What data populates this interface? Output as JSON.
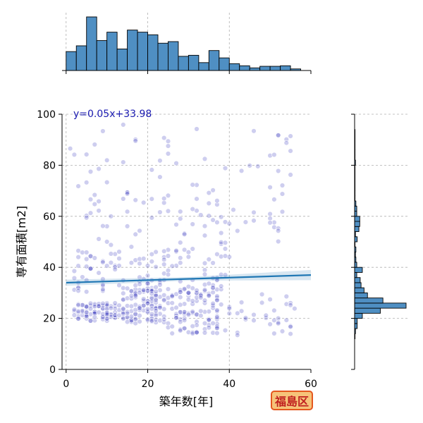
{
  "chart_data": {
    "type": "scatter",
    "xlabel": "築年数[年]",
    "ylabel": "専有面積[m2]",
    "xlim": [
      -1,
      60
    ],
    "ylim": [
      0,
      100
    ],
    "xticks": [
      0,
      20,
      40,
      60
    ],
    "yticks": [
      0,
      20,
      40,
      60,
      80,
      100
    ],
    "grid": true,
    "regression": {
      "label": "y=0.05x+33.98",
      "slope": 0.05,
      "intercept": 33.98,
      "x_range": [
        0,
        60
      ]
    },
    "point_clusters": [
      {
        "x": [
          2,
          14
        ],
        "y": [
          19,
          26
        ],
        "n": 90
      },
      {
        "x": [
          14,
          24
        ],
        "y": [
          18,
          32
        ],
        "n": 110
      },
      {
        "x": [
          24,
          38
        ],
        "y": [
          14,
          32
        ],
        "n": 110
      },
      {
        "x": [
          38,
          56
        ],
        "y": [
          13,
          30
        ],
        "n": 35
      },
      {
        "x": [
          2,
          40
        ],
        "y": [
          30,
          48
        ],
        "n": 120
      },
      {
        "x": [
          5,
          55
        ],
        "y": [
          48,
          70
        ],
        "n": 75
      },
      {
        "x": [
          0,
          57
        ],
        "y": [
          70,
          97
        ],
        "n": 45
      }
    ],
    "top_histogram": {
      "bin_edges": [
        0,
        2.5,
        5,
        7.5,
        10,
        12.5,
        15,
        17.5,
        20,
        22.5,
        25,
        27.5,
        30,
        32.5,
        35,
        37.5,
        40,
        42.5,
        45,
        47.5,
        50,
        52.5,
        55,
        57.5
      ],
      "counts": [
        36,
        47,
        102,
        57,
        73,
        41,
        77,
        73,
        68,
        52,
        55,
        27,
        29,
        15,
        38,
        24,
        13,
        9,
        5,
        8,
        8,
        9,
        3
      ]
    },
    "right_histogram": {
      "bin_edges": [
        12,
        14,
        16,
        18,
        20,
        22,
        24,
        26,
        28,
        30,
        32,
        34,
        36,
        38,
        40,
        42,
        44,
        46,
        48,
        50,
        52,
        54,
        56,
        58,
        60,
        62,
        64,
        66,
        68,
        70,
        80,
        82,
        84,
        86,
        94
      ],
      "counts": [
        1,
        2,
        6,
        6,
        18,
        60,
        120,
        66,
        30,
        22,
        15,
        13,
        5,
        18,
        5,
        3,
        2,
        3,
        1,
        6,
        2,
        10,
        12,
        12,
        5,
        5,
        3,
        1,
        1,
        1,
        2,
        1,
        1,
        1
      ]
    }
  },
  "badge": {
    "label": "福島区",
    "bg": "#f6c37a",
    "border": "#e4571f",
    "text_color": "#c02020"
  },
  "colors": {
    "points": "#1f1fb4",
    "regression": "#1f77b4",
    "histogram": "#4f8fc3",
    "equation": "#1a1ab0"
  }
}
